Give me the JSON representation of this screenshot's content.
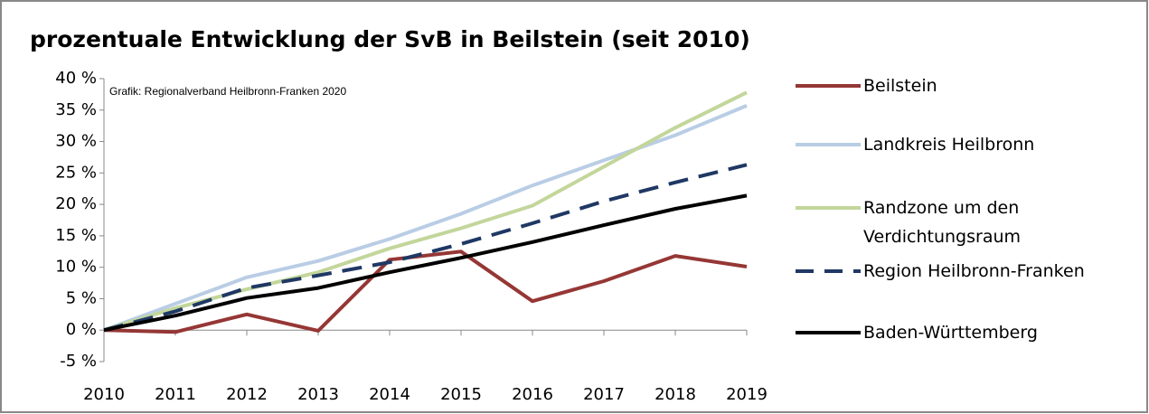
{
  "chart_data": {
    "type": "line",
    "title": "prozentuale Entwicklung der SvB in Beilstein (seit 2010)",
    "annotation": "Grafik: Regionalverband Heilbronn-Franken 2020",
    "categories": [
      "2010",
      "2011",
      "2012",
      "2013",
      "2014",
      "2015",
      "2016",
      "2017",
      "2018",
      "2019"
    ],
    "series": [
      {
        "name": "Beilstein",
        "color": "#953735",
        "dashed": false,
        "values": [
          0,
          -0.3,
          2.5,
          -0.1,
          11.2,
          12.5,
          4.6,
          7.8,
          11.8,
          10.1
        ]
      },
      {
        "name": "Landkreis Heilbronn",
        "color": "#b9cde5",
        "dashed": false,
        "values": [
          0,
          4.2,
          8.4,
          11,
          14.5,
          18.5,
          23,
          27,
          31,
          35.7
        ]
      },
      {
        "name": "Randzone um den Verdichtungsraum",
        "color": "#c3d69b",
        "dashed": false,
        "values": [
          0,
          3.5,
          6.5,
          9.2,
          13,
          16.2,
          19.8,
          26,
          32.2,
          37.8
        ]
      },
      {
        "name": "Region Heilbronn-Franken",
        "color": "#1f3864",
        "dashed": true,
        "values": [
          0,
          3,
          6.7,
          8.7,
          10.8,
          13.7,
          17,
          20.5,
          23.5,
          26.3
        ]
      },
      {
        "name": "Baden-Württemberg",
        "color": "#000000",
        "dashed": false,
        "values": [
          0,
          2.3,
          5.1,
          6.7,
          9.2,
          11.5,
          14,
          16.7,
          19.3,
          21.4
        ]
      }
    ],
    "ylim": [
      -5,
      40
    ],
    "yticks": [
      {
        "value": -5,
        "label": "-5 %"
      },
      {
        "value": 0,
        "label": "0 %"
      },
      {
        "value": 5,
        "label": "5 %"
      },
      {
        "value": 10,
        "label": "10 %"
      },
      {
        "value": 15,
        "label": "15 %"
      },
      {
        "value": 20,
        "label": "20 %"
      },
      {
        "value": 25,
        "label": "25 %"
      },
      {
        "value": 30,
        "label": "30 %"
      },
      {
        "value": 35,
        "label": "35 %"
      },
      {
        "value": 40,
        "label": "40 %"
      }
    ],
    "grid": false,
    "legend": "right"
  }
}
